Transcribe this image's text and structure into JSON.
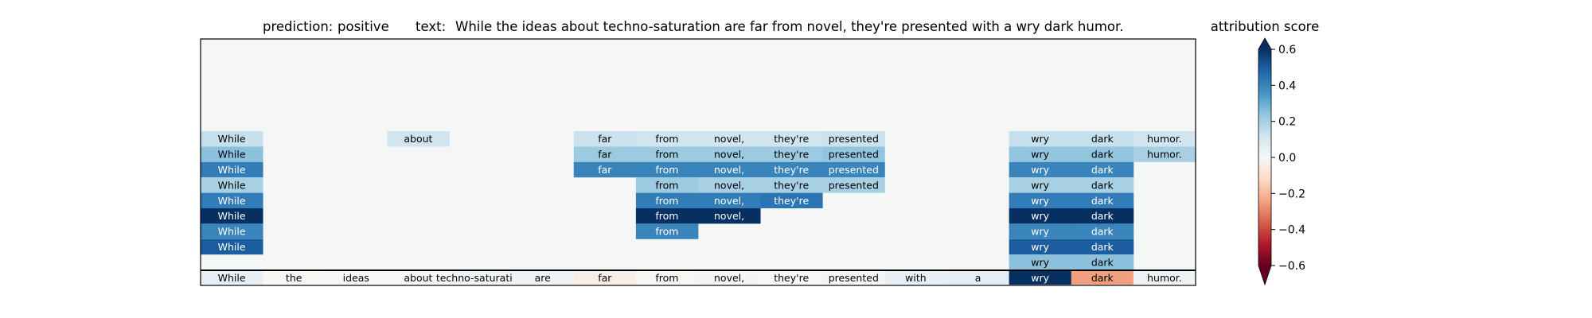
{
  "chart_data": {
    "type": "heatmap",
    "prediction_label": "prediction:",
    "prediction_value": "positive",
    "text_label": "text:",
    "text_value": "While the ideas about techno-saturation are far from novel, they're presented with a wry dark humor.",
    "tokens": [
      "While",
      "the",
      "ideas",
      "about",
      "techno-saturation",
      "are",
      "far",
      "from",
      "novel,",
      "they're",
      "presented",
      "with",
      "a",
      "wry",
      "dark",
      "humor."
    ],
    "rows": [
      [
        0.14,
        null,
        null,
        0.12,
        null,
        null,
        0.13,
        0.12,
        0.12,
        0.12,
        0.13,
        null,
        null,
        0.14,
        0.14,
        0.12
      ],
      [
        0.25,
        null,
        null,
        null,
        null,
        null,
        0.22,
        0.22,
        0.22,
        0.22,
        0.24,
        null,
        null,
        0.24,
        0.24,
        0.2
      ],
      [
        0.42,
        null,
        null,
        null,
        null,
        null,
        0.4,
        0.4,
        0.4,
        0.4,
        0.4,
        null,
        null,
        0.4,
        0.4,
        null
      ],
      [
        0.2,
        null,
        null,
        null,
        null,
        null,
        null,
        0.22,
        0.2,
        0.2,
        0.2,
        null,
        null,
        0.2,
        0.2,
        null
      ],
      [
        0.42,
        null,
        null,
        null,
        null,
        null,
        null,
        0.42,
        0.42,
        0.44,
        null,
        null,
        null,
        0.42,
        0.42,
        null
      ],
      [
        0.62,
        null,
        null,
        null,
        null,
        null,
        null,
        0.62,
        0.62,
        null,
        null,
        null,
        null,
        0.62,
        0.62,
        null
      ],
      [
        0.4,
        null,
        null,
        null,
        null,
        null,
        null,
        0.4,
        null,
        null,
        null,
        null,
        null,
        0.4,
        0.4,
        null
      ],
      [
        0.5,
        null,
        null,
        null,
        null,
        null,
        null,
        null,
        null,
        null,
        null,
        null,
        null,
        0.5,
        0.5,
        null
      ],
      [
        null,
        null,
        null,
        null,
        null,
        null,
        null,
        null,
        null,
        null,
        null,
        null,
        null,
        0.25,
        0.25,
        null
      ]
    ],
    "baseline": [
      0.05,
      -0.01,
      0.0,
      0.0,
      0.02,
      0.03,
      -0.04,
      -0.01,
      0.01,
      0.0,
      0.01,
      0.05,
      0.06,
      0.65,
      -0.25,
      0.03
    ],
    "colorbar": {
      "label": "attribution score",
      "ticks": [
        "0.6",
        "0.4",
        "0.2",
        "0.0",
        "−0.2",
        "−0.4",
        "−0.6"
      ],
      "tick_values": [
        0.6,
        0.4,
        0.2,
        0.0,
        -0.2,
        -0.4,
        -0.6
      ],
      "vmin": -0.6,
      "vmax": 0.6,
      "colormap": "RdBu",
      "extend": "both"
    },
    "background_color": "#f5f7f7"
  }
}
